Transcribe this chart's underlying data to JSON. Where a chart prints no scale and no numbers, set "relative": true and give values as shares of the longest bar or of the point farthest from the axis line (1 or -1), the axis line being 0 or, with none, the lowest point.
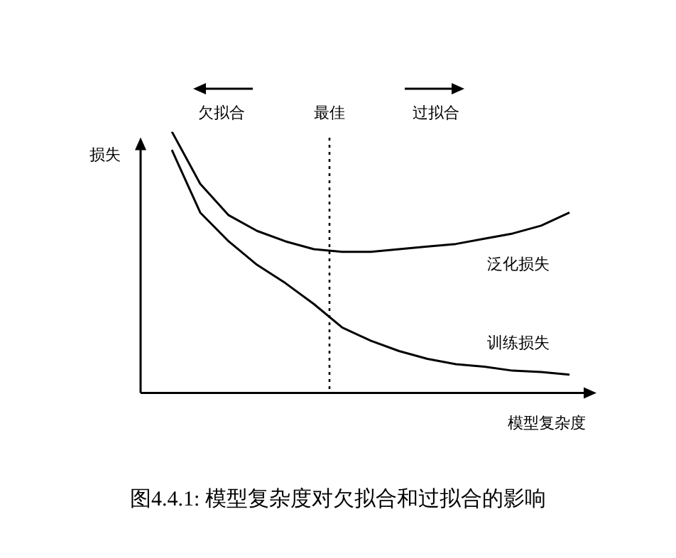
{
  "chart_data": {
    "type": "line",
    "relative": true,
    "xlabel": "模型复杂度",
    "ylabel": "损失",
    "categories": [
      null,
      null,
      null,
      null,
      null,
      null,
      null,
      null,
      null,
      null,
      null,
      null,
      null,
      null,
      null
    ],
    "legend": false,
    "marker": "none",
    "line_style": "solid",
    "series": [
      {
        "name": "泛化损失",
        "color": "#000000",
        "values": [
          1,
          0.8,
          0.68,
          0.62,
          0.58,
          0.55,
          0.54,
          0.54,
          0.55,
          0.56,
          0.57,
          0.59,
          0.61,
          0.64,
          0.69
        ]
      },
      {
        "name": "训练损失",
        "color": "#000000",
        "values": [
          0.93,
          0.69,
          0.58,
          0.49,
          0.42,
          0.34,
          0.25,
          0.2,
          0.16,
          0.13,
          0.11,
          0.1,
          0.085,
          0.08,
          0.07
        ]
      }
    ],
    "annotations": [
      "欠拟合",
      "最佳",
      "过拟合",
      "图4.4.1: 模型复杂度对欠拟合和过拟合的影响"
    ]
  }
}
